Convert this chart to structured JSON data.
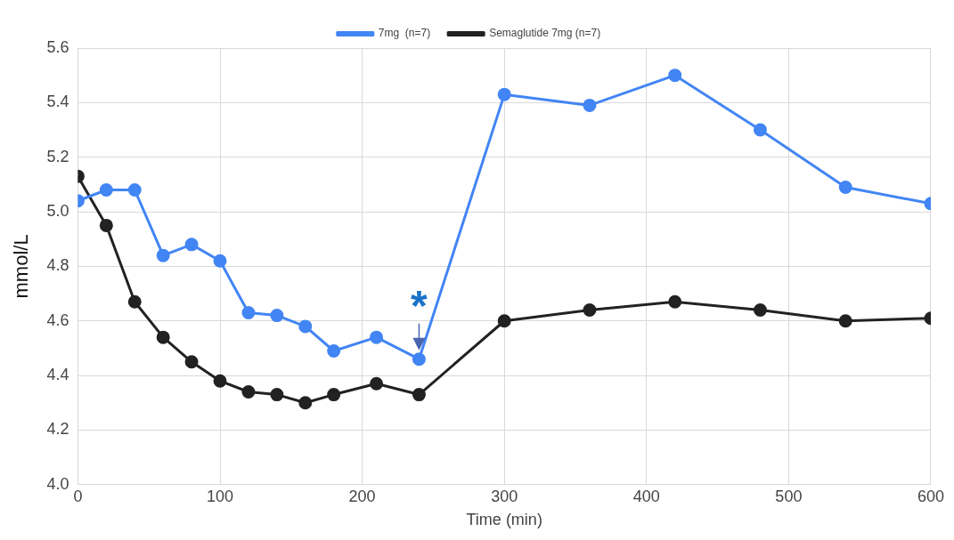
{
  "chart_data": {
    "type": "line",
    "xlabel": "Time (min)",
    "ylabel": "mmol/L",
    "x": [
      0,
      20,
      40,
      60,
      80,
      100,
      120,
      140,
      160,
      180,
      210,
      240,
      300,
      360,
      420,
      480,
      540,
      600
    ],
    "series": [
      {
        "name": "7mg  (n=7)",
        "color": "#4285f4",
        "values": [
          5.04,
          5.08,
          5.08,
          4.84,
          4.88,
          4.82,
          4.63,
          4.62,
          4.58,
          4.49,
          4.54,
          4.46,
          5.43,
          5.39,
          5.5,
          5.3,
          5.09,
          5.03
        ]
      },
      {
        "name": "Semaglutide 7mg (n=7)",
        "color": "#222222",
        "values": [
          5.13,
          4.95,
          4.67,
          4.54,
          4.45,
          4.38,
          4.34,
          4.33,
          4.3,
          4.33,
          4.37,
          4.33,
          4.6,
          4.64,
          4.67,
          4.64,
          4.6,
          4.61
        ]
      }
    ],
    "xlim": [
      0,
      600
    ],
    "xticks": [
      0,
      100,
      200,
      300,
      400,
      500,
      600
    ],
    "ylim": [
      4,
      5.6
    ],
    "yticks": [
      {
        "value": 4,
        "label": "4.0"
      },
      {
        "value": 4.2,
        "label": "4.2"
      },
      {
        "value": 4.4,
        "label": "4.4"
      },
      {
        "value": 4.6,
        "label": "4.6"
      },
      {
        "value": 4.8,
        "label": "4.8"
      },
      {
        "value": 5,
        "label": "5.0"
      },
      {
        "value": 5.2,
        "label": "5.2"
      },
      {
        "value": 5.4,
        "label": "5.4"
      },
      {
        "value": 5.6,
        "label": "5.6"
      }
    ],
    "annotations": [
      {
        "text": "*",
        "x": 240,
        "y": 4.46
      }
    ],
    "grid": true,
    "legend": "top",
    "marker": "circle",
    "line_style": "solid"
  }
}
